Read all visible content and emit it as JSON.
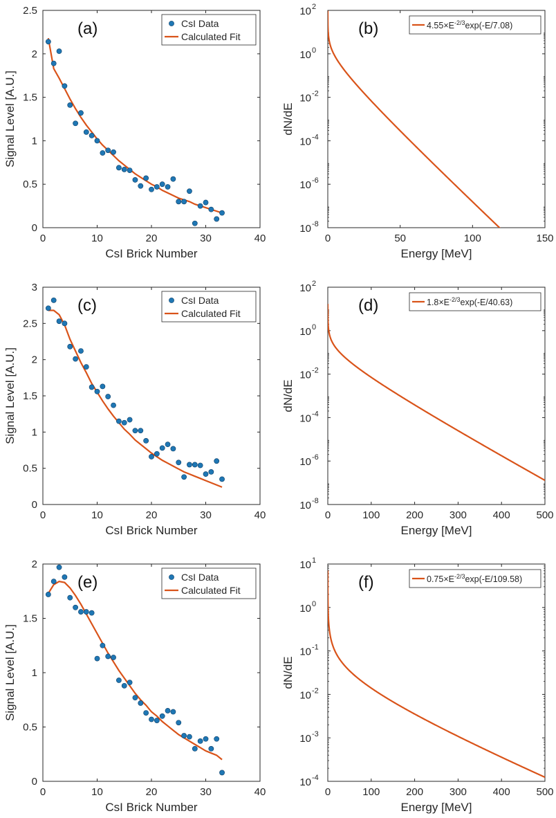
{
  "colors": {
    "data": "#1f77b4",
    "fit": "#d95319",
    "axis": "#262626",
    "frame": "#262626"
  },
  "chart_data": [
    {
      "id": "a",
      "type": "scatter",
      "panel_label": "(a)",
      "xlabel": "CsI Brick Number",
      "ylabel": "Signal Level [A.U.]",
      "xlim": [
        0,
        40
      ],
      "ylim": [
        0,
        2.5
      ],
      "xticks": [
        0,
        10,
        20,
        30,
        40
      ],
      "yticks": [
        0,
        0.5,
        1,
        1.5,
        2,
        2.5
      ],
      "xticklabels": [
        "0",
        "10",
        "20",
        "30",
        "40"
      ],
      "yticklabels": [
        "0",
        "0.5",
        "1",
        "1.5",
        "2",
        "2.5"
      ],
      "legend": [
        "CsI Data",
        "Calculated Fit"
      ],
      "legend_position": "top-right",
      "series": [
        {
          "name": "CsI Data",
          "kind": "points",
          "x": [
            1,
            2,
            3,
            4,
            5,
            6,
            7,
            8,
            9,
            10,
            11,
            12,
            13,
            14,
            15,
            16,
            17,
            18,
            19,
            20,
            21,
            22,
            23,
            24,
            25,
            26,
            27,
            28,
            29,
            30,
            31,
            32,
            33
          ],
          "y": [
            2.14,
            1.89,
            2.03,
            1.63,
            1.41,
            1.2,
            1.32,
            1.1,
            1.06,
            1.0,
            0.86,
            0.89,
            0.87,
            0.69,
            0.67,
            0.66,
            0.55,
            0.48,
            0.57,
            0.44,
            0.47,
            0.5,
            0.47,
            0.56,
            0.3,
            0.3,
            0.42,
            0.05,
            0.25,
            0.29,
            0.21,
            0.1,
            0.17
          ]
        },
        {
          "name": "Calculated Fit",
          "kind": "line",
          "x": [
            1,
            2,
            3,
            4,
            5,
            6,
            7,
            8,
            9,
            10,
            11,
            12,
            13,
            14,
            15,
            16,
            17,
            18,
            19,
            20,
            21,
            22,
            23,
            24,
            25,
            26,
            27,
            28,
            29,
            30,
            31,
            32,
            33
          ],
          "y": [
            2.18,
            1.83,
            1.72,
            1.6,
            1.48,
            1.37,
            1.27,
            1.18,
            1.1,
            1.02,
            0.95,
            0.89,
            0.83,
            0.77,
            0.72,
            0.67,
            0.62,
            0.58,
            0.54,
            0.5,
            0.47,
            0.43,
            0.4,
            0.37,
            0.34,
            0.32,
            0.3,
            0.27,
            0.25,
            0.23,
            0.21,
            0.19,
            0.17
          ]
        }
      ]
    },
    {
      "id": "b",
      "type": "line",
      "panel_label": "(b)",
      "yscale": "log",
      "xlabel": "Energy [MeV]",
      "ylabel": "dN/dE",
      "xlim": [
        0,
        150
      ],
      "ylim_exp": [
        -8,
        2
      ],
      "xticks": [
        0,
        50,
        100,
        150
      ],
      "xticklabels": [
        "0",
        "50",
        "100",
        "150"
      ],
      "ytick_exps": [
        -8,
        -6,
        -4,
        -2,
        0,
        2
      ],
      "ytick_exp_labels": [
        "-8",
        "-6",
        "-4",
        "-2",
        "0",
        "2"
      ],
      "ytick_base": "10",
      "legend_prefix": "4.55×E",
      "legend_sup": "-2/3",
      "legend_suffix": "exp(-E/7.08)",
      "legend_position": "top-right",
      "fit": {
        "A": 4.55,
        "T": 7.08,
        "xmin": 0.1,
        "xmax": 150
      }
    },
    {
      "id": "c",
      "type": "scatter",
      "panel_label": "(c)",
      "xlabel": "CsI Brick Number",
      "ylabel": "Signal Level [A.U.]",
      "xlim": [
        0,
        40
      ],
      "ylim": [
        0,
        3
      ],
      "xticks": [
        0,
        10,
        20,
        30,
        40
      ],
      "yticks": [
        0,
        0.5,
        1,
        1.5,
        2,
        2.5,
        3
      ],
      "xticklabels": [
        "0",
        "10",
        "20",
        "30",
        "40"
      ],
      "yticklabels": [
        "0",
        "0.5",
        "1",
        "1.5",
        "2",
        "2.5",
        "3"
      ],
      "legend": [
        "CsI Data",
        "Calculated Fit"
      ],
      "legend_position": "top-right",
      "series": [
        {
          "name": "CsI Data",
          "kind": "points",
          "x": [
            1,
            2,
            3,
            4,
            5,
            6,
            7,
            8,
            9,
            10,
            11,
            12,
            13,
            14,
            15,
            16,
            17,
            18,
            19,
            20,
            21,
            22,
            23,
            24,
            25,
            26,
            27,
            28,
            29,
            30,
            31,
            32,
            33
          ],
          "y": [
            2.71,
            2.82,
            2.53,
            2.5,
            2.18,
            2.01,
            2.12,
            1.9,
            1.62,
            1.56,
            1.63,
            1.49,
            1.37,
            1.15,
            1.13,
            1.17,
            1.02,
            1.02,
            0.88,
            0.66,
            0.7,
            0.78,
            0.83,
            0.77,
            0.58,
            0.38,
            0.55,
            0.55,
            0.54,
            0.42,
            0.45,
            0.6,
            0.35
          ]
        },
        {
          "name": "Calculated Fit",
          "kind": "line",
          "x": [
            1,
            2,
            3,
            4,
            5,
            6,
            7,
            8,
            9,
            10,
            11,
            12,
            13,
            14,
            15,
            16,
            17,
            18,
            19,
            20,
            21,
            22,
            23,
            24,
            25,
            26,
            27,
            28,
            29,
            30,
            31,
            32,
            33
          ],
          "y": [
            2.68,
            2.68,
            2.62,
            2.48,
            2.28,
            2.12,
            1.96,
            1.82,
            1.67,
            1.55,
            1.43,
            1.32,
            1.22,
            1.13,
            1.04,
            0.97,
            0.89,
            0.83,
            0.77,
            0.71,
            0.66,
            0.61,
            0.57,
            0.53,
            0.49,
            0.45,
            0.42,
            0.39,
            0.36,
            0.33,
            0.3,
            0.27,
            0.24
          ]
        }
      ]
    },
    {
      "id": "d",
      "type": "line",
      "panel_label": "(d)",
      "yscale": "log",
      "xlabel": "Energy [MeV]",
      "ylabel": "dN/dE",
      "xlim": [
        0,
        500
      ],
      "ylim_exp": [
        -8,
        2
      ],
      "xticks": [
        0,
        100,
        200,
        300,
        400,
        500
      ],
      "xticklabels": [
        "0",
        "100",
        "200",
        "300",
        "400",
        "500"
      ],
      "ytick_exps": [
        -8,
        -6,
        -4,
        -2,
        0,
        2
      ],
      "ytick_exp_labels": [
        "-8",
        "-6",
        "-4",
        "-2",
        "0",
        "2"
      ],
      "ytick_base": "10",
      "legend_prefix": "1.8×E",
      "legend_sup": "-2/3",
      "legend_suffix": "exp(-E/40.63)",
      "legend_position": "top-right",
      "fit": {
        "A": 1.8,
        "T": 40.63,
        "xmin": 0.1,
        "xmax": 500
      }
    },
    {
      "id": "e",
      "type": "scatter",
      "panel_label": "(e)",
      "xlabel": "CsI Brick Number",
      "ylabel": "Signal Level [A.U.]",
      "xlim": [
        0,
        40
      ],
      "ylim": [
        0,
        2
      ],
      "xticks": [
        0,
        10,
        20,
        30,
        40
      ],
      "yticks": [
        0,
        0.5,
        1,
        1.5,
        2
      ],
      "xticklabels": [
        "0",
        "10",
        "20",
        "30",
        "40"
      ],
      "yticklabels": [
        "0",
        "0.5",
        "1",
        "1.5",
        "2"
      ],
      "legend": [
        "CsI Data",
        "Calculated Fit"
      ],
      "legend_position": "top-right",
      "series": [
        {
          "name": "CsI Data",
          "kind": "points",
          "x": [
            1,
            2,
            3,
            4,
            5,
            6,
            7,
            8,
            9,
            10,
            11,
            12,
            13,
            14,
            15,
            16,
            17,
            18,
            19,
            20,
            21,
            22,
            23,
            24,
            25,
            26,
            27,
            28,
            29,
            30,
            31,
            32,
            33
          ],
          "y": [
            1.72,
            1.84,
            1.97,
            1.88,
            1.69,
            1.6,
            1.56,
            1.56,
            1.55,
            1.13,
            1.25,
            1.15,
            1.14,
            0.93,
            0.88,
            0.91,
            0.77,
            0.72,
            0.63,
            0.57,
            0.56,
            0.6,
            0.65,
            0.64,
            0.54,
            0.42,
            0.41,
            0.3,
            0.37,
            0.39,
            0.3,
            0.39,
            0.08
          ]
        },
        {
          "name": "Calculated Fit",
          "kind": "line",
          "x": [
            1,
            2,
            3,
            4,
            5,
            6,
            7,
            8,
            9,
            10,
            11,
            12,
            13,
            14,
            15,
            16,
            17,
            18,
            19,
            20,
            21,
            22,
            23,
            24,
            25,
            26,
            27,
            28,
            29,
            30,
            31,
            32,
            33
          ],
          "y": [
            1.73,
            1.81,
            1.84,
            1.83,
            1.78,
            1.71,
            1.63,
            1.54,
            1.45,
            1.36,
            1.27,
            1.18,
            1.1,
            1.02,
            0.95,
            0.88,
            0.81,
            0.75,
            0.7,
            0.64,
            0.6,
            0.55,
            0.51,
            0.47,
            0.43,
            0.4,
            0.37,
            0.34,
            0.31,
            0.28,
            0.26,
            0.24,
            0.2
          ]
        }
      ]
    },
    {
      "id": "f",
      "type": "line",
      "panel_label": "(f)",
      "yscale": "log",
      "xlabel": "Energy [MeV]",
      "ylabel": "dN/dE",
      "xlim": [
        0,
        500
      ],
      "ylim_exp": [
        -4,
        1
      ],
      "xticks": [
        0,
        100,
        200,
        300,
        400,
        500
      ],
      "xticklabels": [
        "0",
        "100",
        "200",
        "300",
        "400",
        "500"
      ],
      "ytick_exps": [
        -4,
        -3,
        -2,
        -1,
        0,
        1
      ],
      "ytick_exp_labels": [
        "-4",
        "-3",
        "-2",
        "-1",
        "0",
        "1"
      ],
      "ytick_base": "10",
      "legend_prefix": "0.75×E",
      "legend_sup": "-2/3",
      "legend_suffix": "exp(-E/109.58)",
      "legend_position": "top-right",
      "fit": {
        "A": 0.75,
        "T": 109.58,
        "xmin": 0.1,
        "xmax": 500
      }
    }
  ]
}
